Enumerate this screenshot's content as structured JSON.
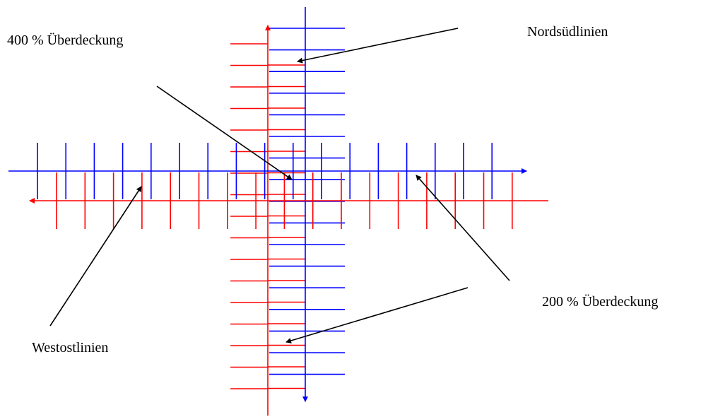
{
  "labels": {
    "overlap_400": "400 % Überdeckung",
    "north_south": "Nordsüdlinien",
    "overlap_200": "200 % Überdeckung",
    "west_east": "Westostlinien"
  },
  "colors": {
    "blue": "#0000ff",
    "red": "#ff0000",
    "black": "#000000",
    "background": "#ffffff"
  }
}
